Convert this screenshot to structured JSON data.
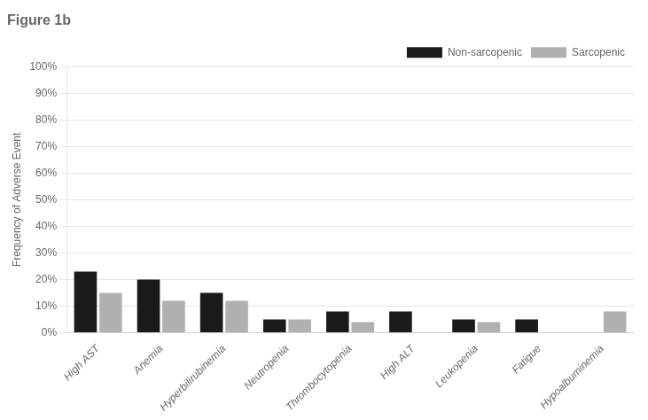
{
  "chart_data": {
    "type": "bar",
    "title": "Figure 1b",
    "categories": [
      "High AST",
      "Anemia",
      "Hyperbilirubinemia",
      "Neutropenia",
      "Thrombocytopenia",
      "High ALT",
      "Leukopenia",
      "Fatigue",
      "Hypoalbuminemia"
    ],
    "series": [
      {
        "name": "Non-sarcopenic",
        "color": "#1a1a1a",
        "values": [
          23,
          20,
          15,
          5,
          8,
          8,
          5,
          5,
          0
        ]
      },
      {
        "name": "Sarcopenic",
        "color": "#b0b0b0",
        "values": [
          15,
          12,
          12,
          5,
          4,
          0,
          4,
          0,
          8
        ]
      }
    ],
    "ylabel": "Frequency of Adverse Event",
    "ylim": [
      0,
      100
    ],
    "yticks": [
      {
        "value": 0,
        "label": "0%"
      },
      {
        "value": 10,
        "label": "10%"
      },
      {
        "value": 20,
        "label": "20%"
      },
      {
        "value": 30,
        "label": "30%"
      },
      {
        "value": 40,
        "label": "40%"
      },
      {
        "value": 50,
        "label": "50%"
      },
      {
        "value": 60,
        "label": "60%"
      },
      {
        "value": 70,
        "label": "70%"
      },
      {
        "value": 80,
        "label": "80%"
      },
      {
        "value": 90,
        "label": "90%"
      },
      {
        "value": 100,
        "label": "100%"
      }
    ],
    "grid": true,
    "legend": "upper right"
  }
}
